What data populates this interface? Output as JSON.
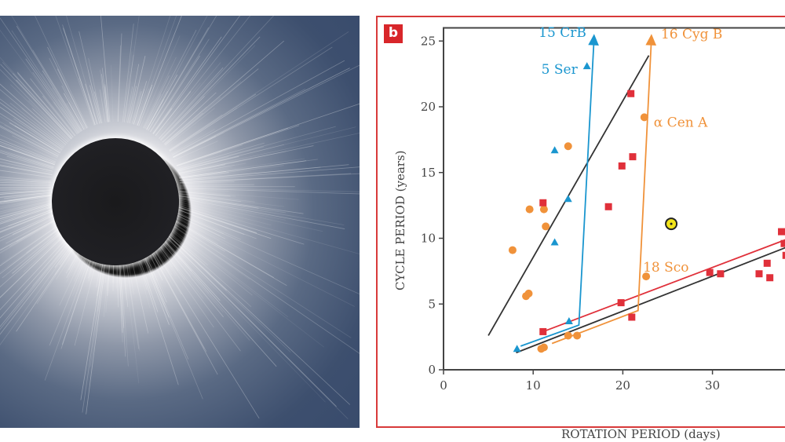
{
  "panel_label": "b",
  "chart_data": {
    "type": "scatter",
    "xlabel": "ROTATION PERIOD (days)",
    "ylabel": "CYCLE PERIOD (years)",
    "xlim": [
      0,
      38.5
    ],
    "ylim": [
      0,
      26
    ],
    "x_ticks": [
      "0",
      "10",
      "20",
      "30"
    ],
    "y_ticks": [
      "0",
      "5",
      "10",
      "15",
      "20",
      "25"
    ],
    "grid": false,
    "colors": {
      "orange": "#f0923a",
      "blue": "#1a96cf",
      "red": "#e0303a",
      "black": "#333333",
      "sun": "#f2e41a"
    },
    "series": [
      {
        "marker": "circle",
        "color": "orange",
        "points": [
          [
            7.7,
            9.1
          ],
          [
            9.6,
            12.2
          ],
          [
            11.2,
            12.2
          ],
          [
            11.4,
            10.9
          ],
          [
            13.9,
            17.0
          ],
          [
            22.4,
            19.2
          ],
          [
            22.6,
            7.1
          ],
          [
            9.2,
            5.6
          ],
          [
            9.5,
            5.8
          ],
          [
            10.9,
            1.6
          ],
          [
            11.2,
            1.7
          ],
          [
            13.9,
            2.6
          ],
          [
            14.9,
            2.6
          ]
        ]
      },
      {
        "marker": "triangle",
        "color": "blue",
        "points": [
          [
            16.0,
            23.1
          ],
          [
            12.4,
            16.7
          ],
          [
            13.9,
            13.0
          ],
          [
            12.4,
            9.7
          ],
          [
            14.0,
            3.7
          ],
          [
            8.2,
            1.6
          ]
        ]
      },
      {
        "marker": "square",
        "color": "red",
        "points": [
          [
            20.9,
            21.0
          ],
          [
            21.1,
            16.2
          ],
          [
            19.9,
            15.5
          ],
          [
            11.1,
            12.7
          ],
          [
            18.4,
            12.4
          ],
          [
            11.1,
            2.9
          ],
          [
            19.8,
            5.1
          ],
          [
            21.0,
            4.0
          ],
          [
            29.7,
            7.4
          ],
          [
            30.9,
            7.3
          ],
          [
            35.2,
            7.3
          ],
          [
            36.1,
            8.1
          ],
          [
            36.4,
            7.0
          ],
          [
            37.7,
            10.5
          ],
          [
            38.0,
            9.6
          ],
          [
            38.2,
            8.7
          ]
        ]
      },
      {
        "marker": "sun",
        "color": "sun",
        "points": [
          [
            25.4,
            11.1
          ]
        ]
      }
    ],
    "lines": [
      {
        "color": "black",
        "points": [
          [
            5.0,
            2.6
          ],
          [
            22.9,
            23.9
          ]
        ]
      },
      {
        "color": "black",
        "points": [
          [
            8.1,
            1.3
          ],
          [
            38.2,
            9.3
          ]
        ]
      },
      {
        "color": "red",
        "points": [
          [
            11.1,
            2.9
          ],
          [
            38.2,
            9.9
          ]
        ]
      },
      {
        "color": "blue",
        "arrow": true,
        "points": [
          [
            8.6,
            1.8
          ],
          [
            15.1,
            3.4
          ],
          [
            16.8,
            25.3
          ]
        ]
      },
      {
        "color": "orange",
        "arrow": true,
        "points": [
          [
            12.1,
            2.0
          ],
          [
            21.7,
            4.5
          ],
          [
            23.2,
            25.3
          ]
        ]
      }
    ],
    "annotations": [
      {
        "text": "15 CrB",
        "color": "blue",
        "at": [
          16.8,
          25.3
        ]
      },
      {
        "text": "5 Ser",
        "color": "blue",
        "at": [
          16.0,
          23.1
        ]
      },
      {
        "text": "16 Cyg B",
        "color": "orange",
        "at": [
          23.2,
          25.3
        ]
      },
      {
        "text": "α Cen A",
        "color": "orange",
        "at": [
          22.4,
          19.2
        ]
      },
      {
        "text": "18 Sco",
        "color": "orange",
        "at": [
          22.6,
          7.1
        ]
      }
    ]
  }
}
